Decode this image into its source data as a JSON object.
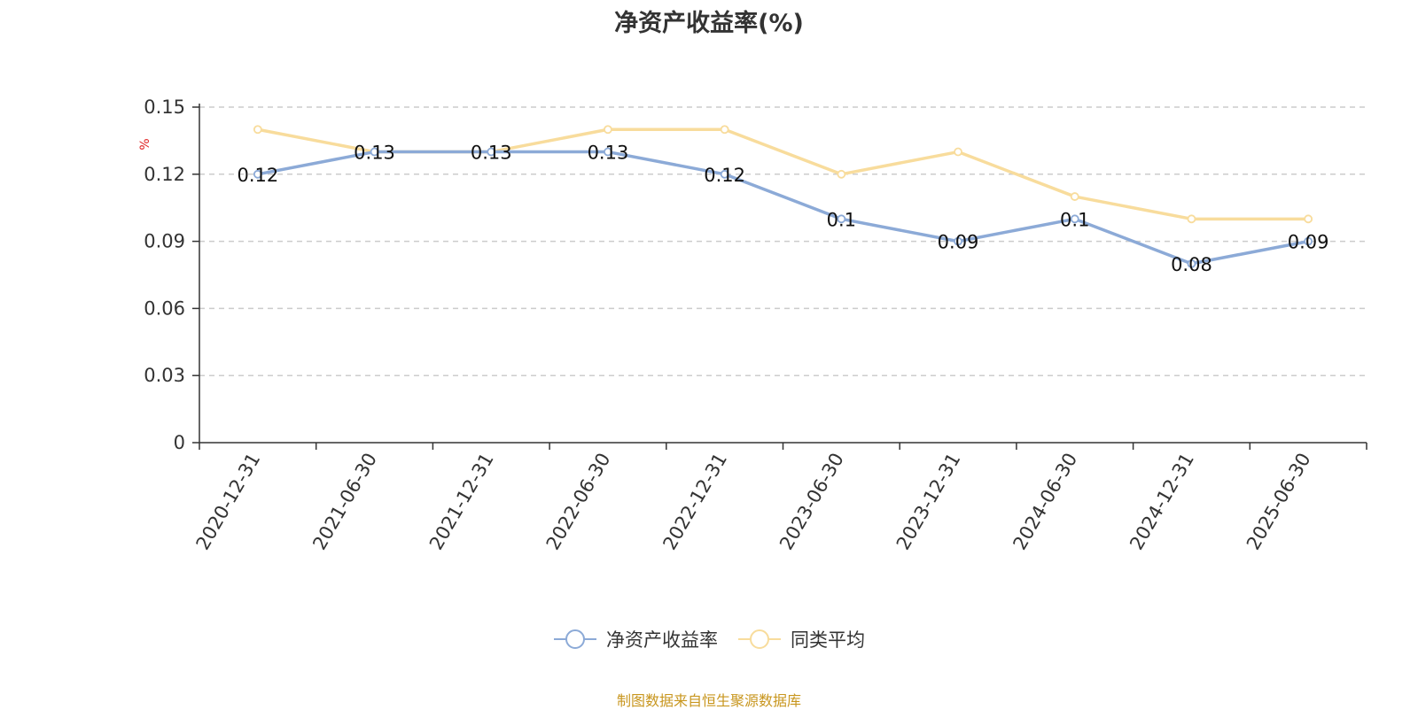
{
  "chart_data": {
    "type": "line",
    "title": "净资产收益率(%)",
    "ylabel": "%",
    "xlabel": "",
    "categories": [
      "2020-12-31",
      "2021-06-30",
      "2021-12-31",
      "2022-06-30",
      "2022-12-31",
      "2023-06-30",
      "2023-12-31",
      "2024-06-30",
      "2024-12-31",
      "2025-06-30"
    ],
    "ylim": [
      0,
      0.15
    ],
    "yticks": [
      "0",
      "0.03",
      "0.06",
      "0.09",
      "0.12",
      "0.15"
    ],
    "grid": true,
    "legend_position": "bottom",
    "series": [
      {
        "name": "净资产收益率",
        "color": "#8caad7",
        "values": [
          0.12,
          0.13,
          0.13,
          0.13,
          0.12,
          0.1,
          0.09,
          0.1,
          0.08,
          0.09
        ],
        "labels": [
          "0.12",
          "0.13",
          "0.13",
          "0.13",
          "0.12",
          "0.1",
          "0.09",
          "0.1",
          "0.08",
          "0.09"
        ]
      },
      {
        "name": "同类平均",
        "color": "#f8dc9c",
        "values": [
          0.14,
          0.13,
          0.13,
          0.14,
          0.14,
          0.12,
          0.13,
          0.11,
          0.1,
          0.1
        ]
      }
    ]
  },
  "source": {
    "text": "制图数据来自恒生聚源数据库",
    "color": "#c8961e"
  },
  "colors": {
    "axis": "#333333",
    "grid": "#cccccc",
    "ylabel": "#e02020"
  }
}
